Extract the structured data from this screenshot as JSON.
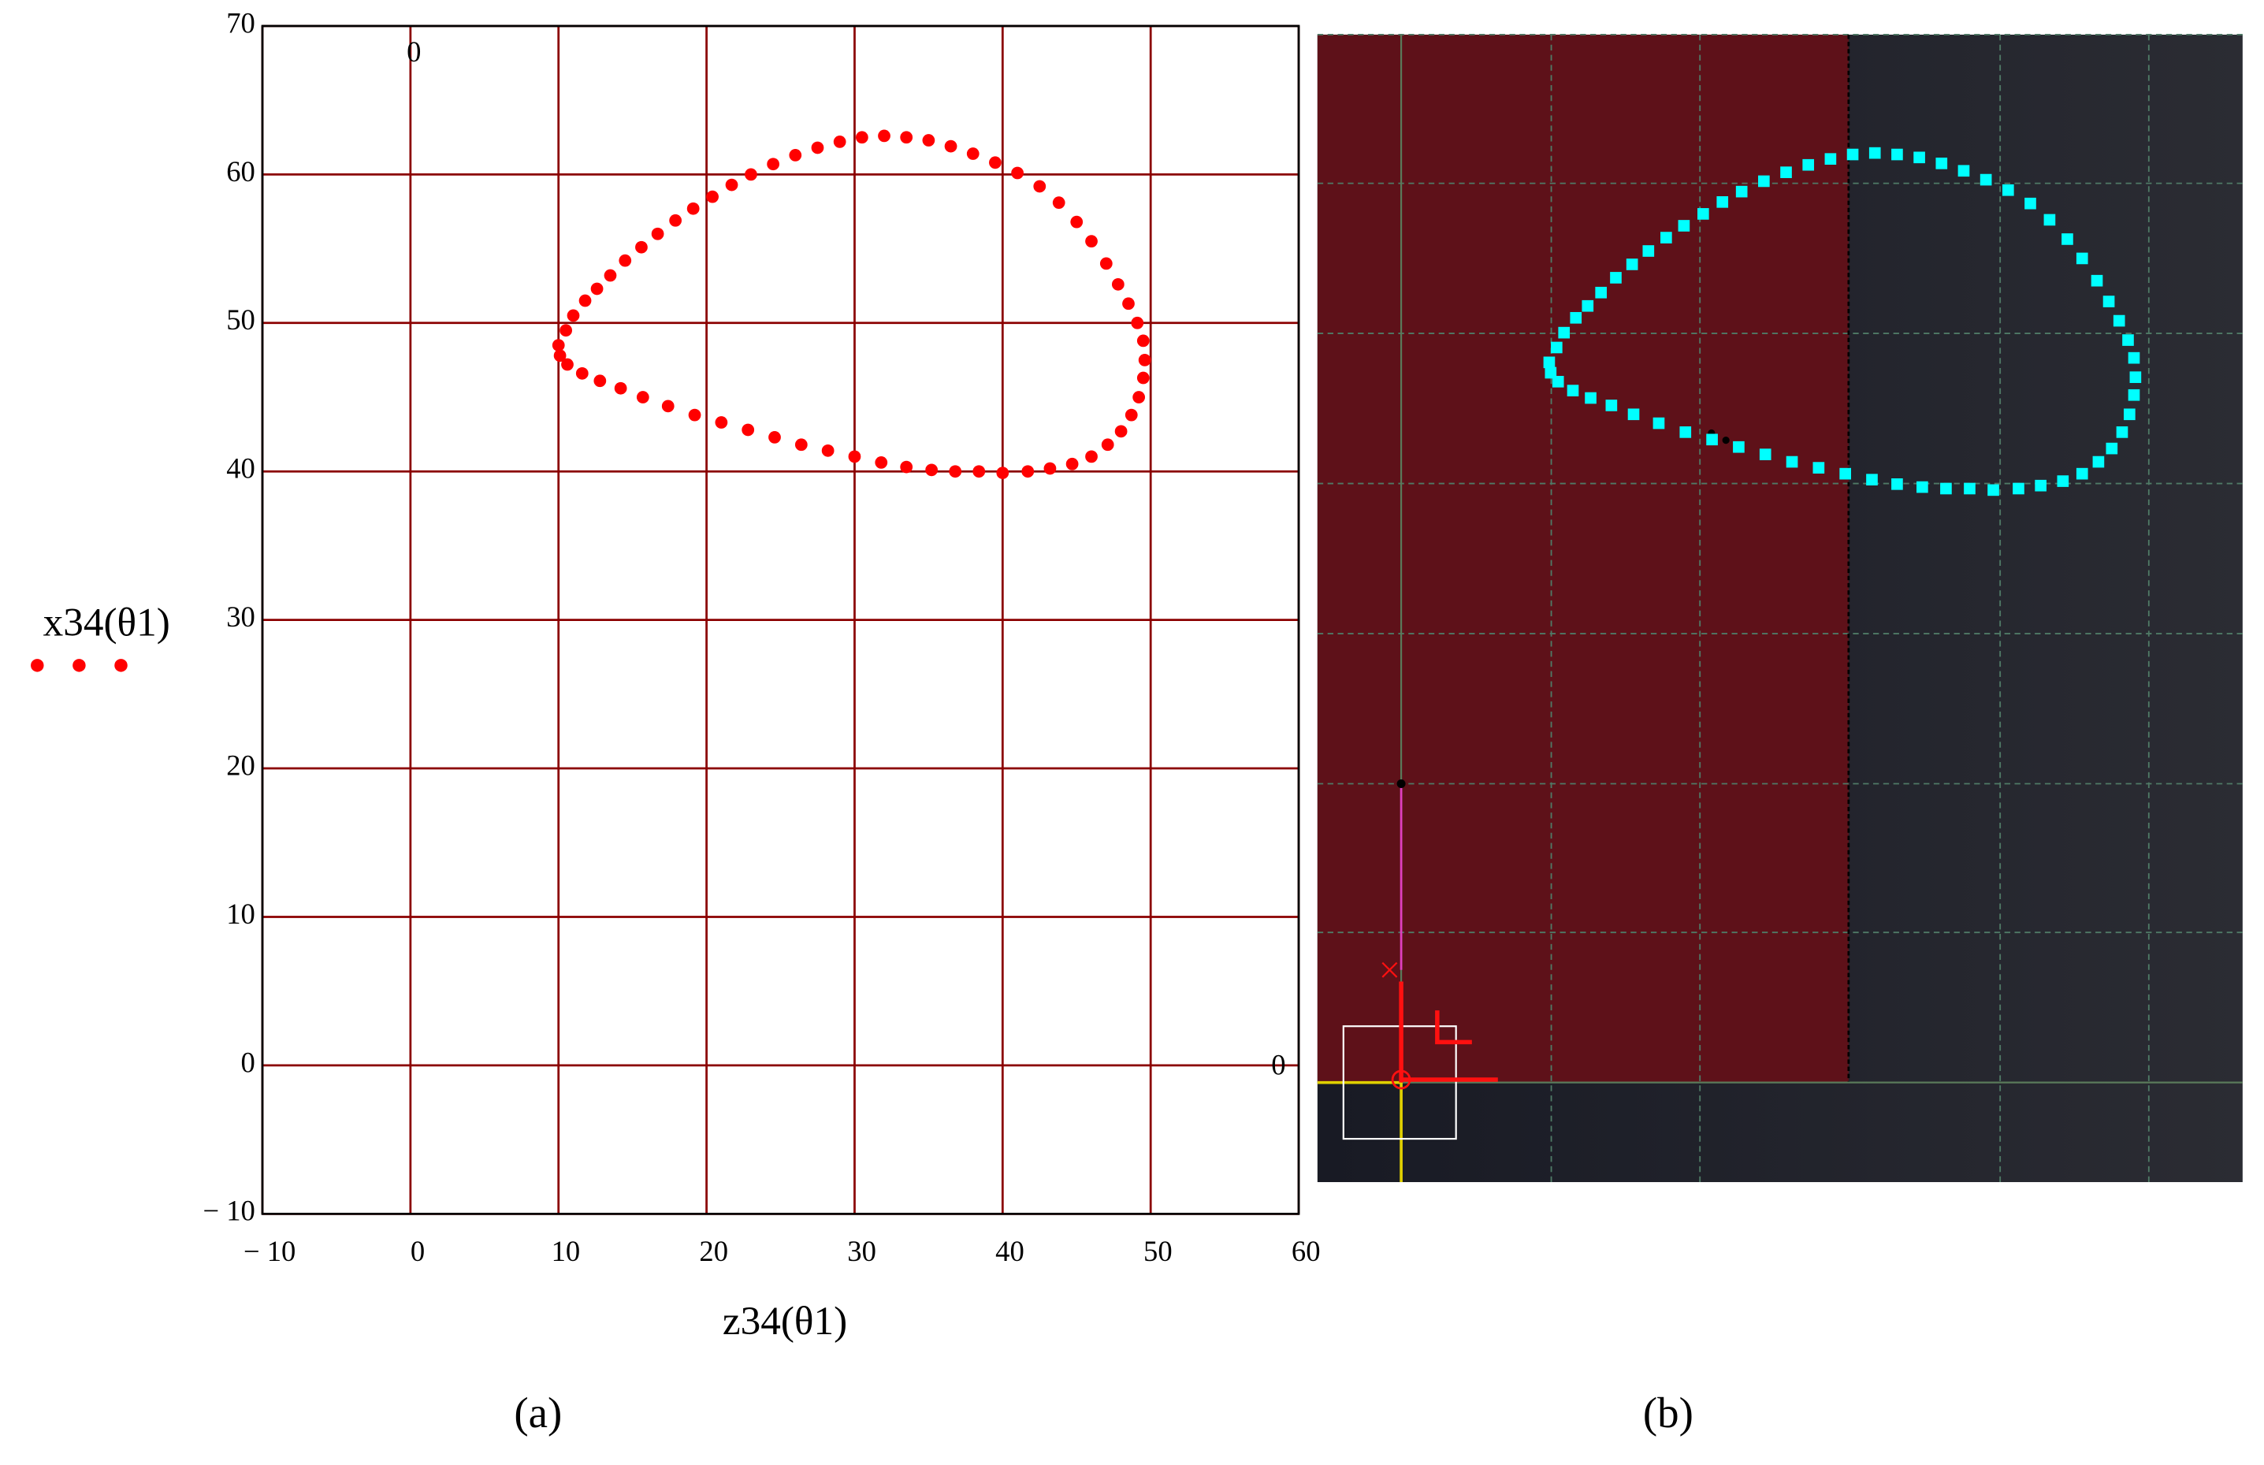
{
  "figure": {
    "labels": [
      "(a)",
      "(b)"
    ]
  },
  "chart_data": {
    "type": "scatter",
    "x_label": "z34(θ1)",
    "annotations": [
      "0",
      "0"
    ],
    "series": [
      {
        "name": "x34(θ1)",
        "color": "#ff0000",
        "x": [
          10,
          10.5,
          11,
          11.8,
          12.6,
          13.5,
          14.5,
          15.6,
          16.7,
          17.9,
          19.1,
          20.4,
          21.7,
          23,
          24.5,
          26,
          27.5,
          29,
          30.5,
          32,
          33.5,
          35,
          36.5,
          38,
          39.5,
          41,
          42.5,
          43.8,
          45,
          46,
          47,
          47.8,
          48.5,
          49.1,
          49.5,
          49.6,
          49.5,
          49.2,
          48.7,
          48,
          47.1,
          46,
          44.7,
          43.2,
          41.7,
          40,
          38.4,
          36.8,
          35.2,
          33.5,
          31.8,
          30,
          28.2,
          26.4,
          24.6,
          22.8,
          21,
          19.2,
          17.4,
          15.7,
          14.2,
          12.8,
          11.6,
          10.6,
          10.1
        ],
        "values": [
          48.5,
          49.5,
          50.5,
          51.5,
          52.3,
          53.2,
          54.2,
          55.1,
          56,
          56.9,
          57.7,
          58.5,
          59.3,
          60,
          60.7,
          61.3,
          61.8,
          62.2,
          62.5,
          62.6,
          62.5,
          62.3,
          61.9,
          61.4,
          60.8,
          60.1,
          59.2,
          58.1,
          56.8,
          55.5,
          54,
          52.6,
          51.3,
          50,
          48.8,
          47.5,
          46.3,
          45,
          43.8,
          42.7,
          41.8,
          41,
          40.5,
          40.2,
          40,
          39.9,
          40,
          40,
          40.1,
          40.3,
          40.6,
          41,
          41.4,
          41.8,
          42.3,
          42.8,
          43.3,
          43.8,
          44.4,
          45,
          45.6,
          46.1,
          46.6,
          47.2,
          47.8
        ]
      }
    ],
    "xlim": [
      -10,
      60
    ],
    "ylim": [
      -10,
      70
    ],
    "xticks": [
      {
        "value": -10,
        "label": "− 10"
      },
      0,
      10,
      20,
      30,
      40,
      50,
      60
    ],
    "yticks": [
      {
        "value": -10,
        "label": "− 10"
      },
      0,
      10,
      20,
      30,
      40,
      50,
      60,
      70
    ],
    "grid": true,
    "grid_color": "#8b0000",
    "alt_panel_color": "#00ffff"
  }
}
